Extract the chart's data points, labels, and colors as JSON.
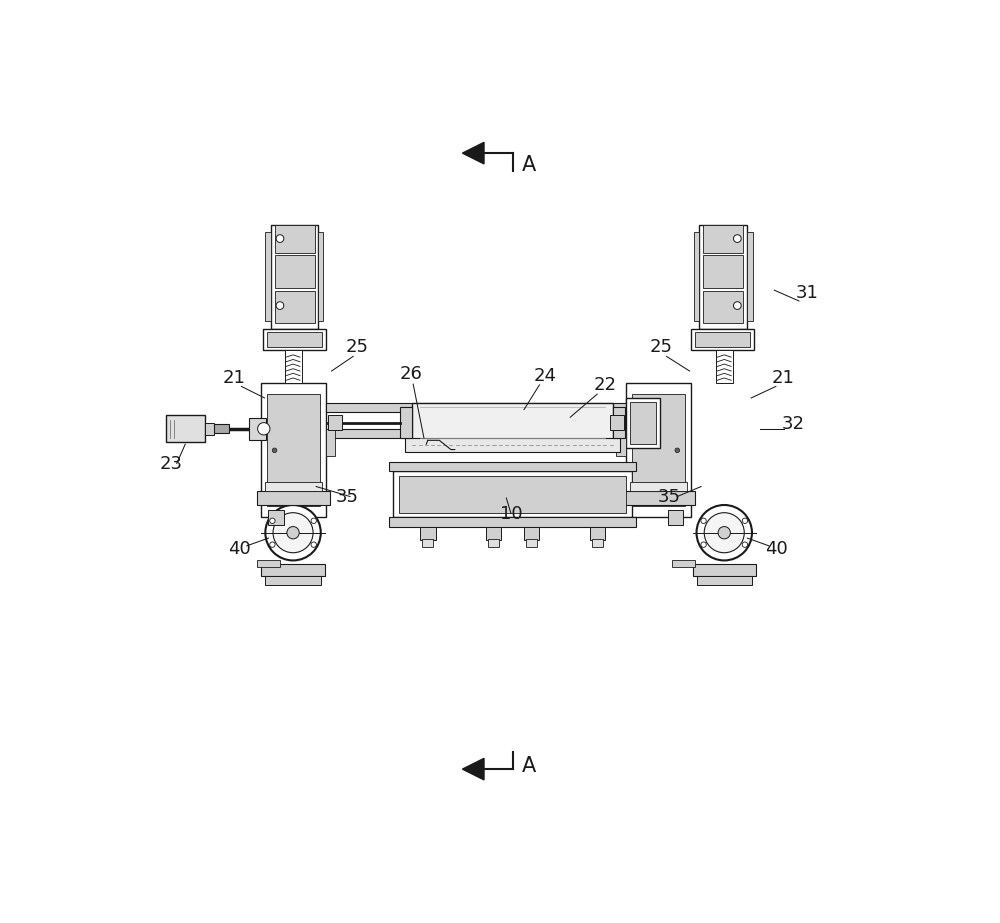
{
  "bg_color": "#ffffff",
  "lc": "#1a1a1a",
  "lg": "#d0d0d0",
  "mg": "#a8a8a8",
  "dg": "#606060",
  "vdg": "#303030",
  "figsize": [
    10.0,
    9.23
  ],
  "dpi": 100,
  "labels": {
    "A_top": "A",
    "A_bottom": "A",
    "10": "10",
    "21_left": "21",
    "21_right": "21",
    "22": "22",
    "23": "23",
    "24": "24",
    "25_left": "25",
    "25_right": "25",
    "26": "26",
    "31": "31",
    "32": "32",
    "35_left": "35",
    "35_right": "35",
    "40_left": "40",
    "40_right": "40"
  }
}
